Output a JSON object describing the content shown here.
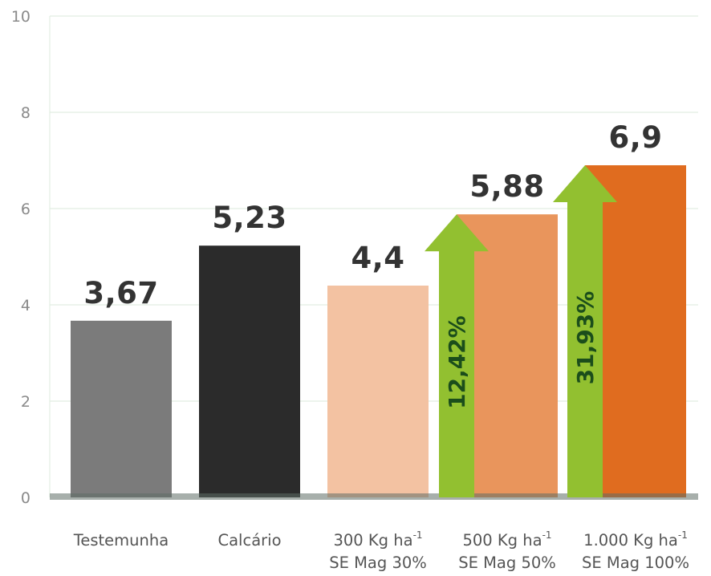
{
  "chart_data": {
    "type": "bar",
    "categories": [
      {
        "line1": "Testemunha",
        "line2": ""
      },
      {
        "line1": "Calcário",
        "line2": ""
      },
      {
        "line1": "300 Kg ha",
        "sup": "-1",
        "line2": "SE Mag 30%"
      },
      {
        "line1": "500 Kg ha",
        "sup": "-1",
        "line2": "SE Mag 50%"
      },
      {
        "line1": "1.000 Kg ha",
        "sup": "-1",
        "line2": "SE Mag 100%"
      }
    ],
    "values": [
      3.67,
      5.23,
      4.4,
      5.88,
      6.9
    ],
    "value_labels": [
      "3,67",
      "5,23",
      "4,4",
      "5,88",
      "6,9"
    ],
    "bar_colors": [
      "#7b7b7b",
      "#2b2b2b",
      "#f3c2a2",
      "#e9955c",
      "#e06c1f"
    ],
    "ylim": [
      0,
      10
    ],
    "yticks": [
      0,
      2,
      4,
      6,
      8,
      10
    ],
    "grid": true,
    "annotations": [
      {
        "category_index": 3,
        "label": "12,42%",
        "color": "#92c030"
      },
      {
        "category_index": 4,
        "label": "31,93%",
        "color": "#92c030"
      }
    ]
  }
}
